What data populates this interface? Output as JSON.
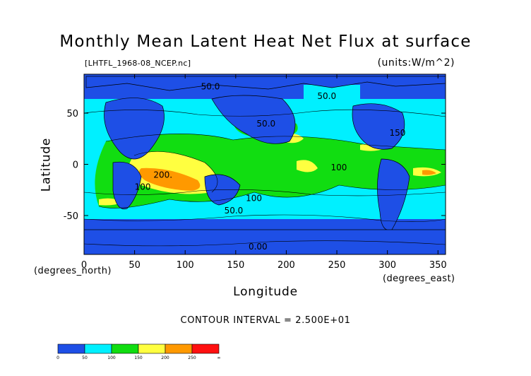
{
  "chart_data": {
    "type": "heatmap",
    "title": "Monthly Mean Latent Heat Net Flux at surface",
    "subtitle": "[LHTFL_1968-08_NCEP.nc]",
    "units": "(units:W/m^2)",
    "xlabel": "Longitude",
    "ylabel": "Latitude",
    "xunit_note": "(degrees_east)",
    "yunit_note": "(degrees_north)",
    "xlim": [
      0,
      357.5
    ],
    "ylim": [
      -88,
      88
    ],
    "xticks": [
      0,
      50,
      100,
      150,
      200,
      250,
      300,
      350
    ],
    "yticks": [
      -50,
      0,
      50
    ],
    "contour_interval": "CONTOUR INTERVAL = 2.500E+01",
    "contour_labels": [
      {
        "text": "50.0",
        "lon": 125,
        "lat": 73
      },
      {
        "text": "50.0",
        "lon": 240,
        "lat": 64
      },
      {
        "text": "50.0",
        "lon": 180,
        "lat": 37
      },
      {
        "text": "150",
        "lon": 310,
        "lat": 28
      },
      {
        "text": "100",
        "lon": 252,
        "lat": -6
      },
      {
        "text": "200.",
        "lon": 78,
        "lat": -13
      },
      {
        "text": "100",
        "lon": 58,
        "lat": -25
      },
      {
        "text": "100",
        "lon": 168,
        "lat": -36
      },
      {
        "text": "50.0",
        "lon": 148,
        "lat": -48
      },
      {
        "text": "0.00",
        "lon": 172,
        "lat": -83
      }
    ],
    "colorbar": {
      "levels": [
        "0",
        "50",
        "100",
        "150",
        "200",
        "250",
        "∞"
      ],
      "colors": [
        "#1e4fe6",
        "#00f0ff",
        "#11dd11",
        "#ffff40",
        "#ff9900",
        "#ff1010"
      ]
    }
  }
}
